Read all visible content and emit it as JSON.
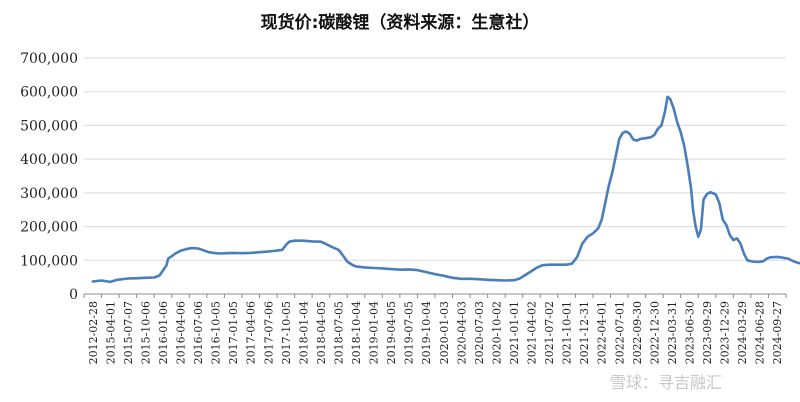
{
  "chart_data": {
    "type": "line",
    "title": "现货价:碳酸锂（资料来源：生意社）",
    "xlabel": "",
    "ylabel": "",
    "ylim": [
      0,
      700000
    ],
    "yticks": [
      0,
      100000,
      200000,
      300000,
      400000,
      500000,
      600000,
      700000
    ],
    "ytick_labels": [
      "0",
      "100,000",
      "200,000",
      "300,000",
      "400,000",
      "500,000",
      "600,000",
      "700,000"
    ],
    "x_tick_labels": [
      "2012-02-28",
      "2015-04-01",
      "2015-07-07",
      "2015-10-06",
      "2016-01-06",
      "2016-04-06",
      "2016-07-06",
      "2016-10-05",
      "2017-01-05",
      "2017-04-06",
      "2017-07-06",
      "2017-10-05",
      "2018-01-04",
      "2018-04-05",
      "2018-07-05",
      "2018-10-04",
      "2019-01-04",
      "2019-04-05",
      "2019-07-05",
      "2019-10-04",
      "2020-01-03",
      "2020-04-03",
      "2020-07-03",
      "2020-10-02",
      "2021-01-01",
      "2021-04-02",
      "2021-07-02",
      "2021-10-01",
      "2021-12-31",
      "2022-04-01",
      "2022-07-01",
      "2022-09-30",
      "2022-12-30",
      "2023-03-31",
      "2023-06-30",
      "2023-09-29",
      "2023-12-29",
      "2024-03-29",
      "2024-06-28",
      "2024-09-27"
    ],
    "grid": "horizontal",
    "legend": "none",
    "line_color": "#4a7ebb",
    "series": [
      {
        "points": [
          [
            0,
            37000
          ],
          [
            0.5,
            40000
          ],
          [
            1,
            36000
          ],
          [
            1.4,
            42000
          ],
          [
            2,
            46000
          ],
          [
            2.6,
            47000
          ],
          [
            3,
            48000
          ],
          [
            3.5,
            49000
          ],
          [
            3.8,
            55000
          ],
          [
            4,
            70000
          ],
          [
            4.2,
            85000
          ],
          [
            4.3,
            105000
          ],
          [
            4.5,
            112000
          ],
          [
            4.7,
            120000
          ],
          [
            5,
            128000
          ],
          [
            5.3,
            133000
          ],
          [
            5.6,
            136000
          ],
          [
            6,
            135000
          ],
          [
            6.3,
            130000
          ],
          [
            6.6,
            124000
          ],
          [
            7,
            121000
          ],
          [
            7.3,
            120000
          ],
          [
            7.6,
            121000
          ],
          [
            8,
            122000
          ],
          [
            8.5,
            121000
          ],
          [
            9,
            122000
          ],
          [
            9.5,
            124000
          ],
          [
            10,
            126000
          ],
          [
            10.4,
            128000
          ],
          [
            10.8,
            131000
          ],
          [
            11,
            145000
          ],
          [
            11.2,
            155000
          ],
          [
            11.5,
            158000
          ],
          [
            12,
            158000
          ],
          [
            12.5,
            156000
          ],
          [
            13,
            155000
          ],
          [
            13.3,
            148000
          ],
          [
            13.6,
            140000
          ],
          [
            14,
            131000
          ],
          [
            14.2,
            118000
          ],
          [
            14.5,
            96000
          ],
          [
            14.8,
            86000
          ],
          [
            15,
            82000
          ],
          [
            15.5,
            79000
          ],
          [
            16,
            77000
          ],
          [
            16.5,
            76000
          ],
          [
            17,
            74000
          ],
          [
            17.5,
            72000
          ],
          [
            18,
            73000
          ],
          [
            18.5,
            71000
          ],
          [
            19,
            65000
          ],
          [
            19.5,
            59000
          ],
          [
            20,
            54000
          ],
          [
            20.5,
            48000
          ],
          [
            21,
            45000
          ],
          [
            21.5,
            45000
          ],
          [
            22,
            44000
          ],
          [
            22.5,
            42000
          ],
          [
            23,
            41000
          ],
          [
            23.5,
            40000
          ],
          [
            24,
            41000
          ],
          [
            24.3,
            45000
          ],
          [
            24.6,
            55000
          ],
          [
            25,
            68000
          ],
          [
            25.3,
            78000
          ],
          [
            25.6,
            85000
          ],
          [
            26,
            87000
          ],
          [
            26.5,
            87000
          ],
          [
            27,
            87000
          ],
          [
            27.3,
            90000
          ],
          [
            27.6,
            110000
          ],
          [
            27.9,
            150000
          ],
          [
            28.2,
            170000
          ],
          [
            28.5,
            180000
          ],
          [
            28.8,
            195000
          ],
          [
            29,
            220000
          ],
          [
            29.2,
            270000
          ],
          [
            29.4,
            320000
          ],
          [
            29.6,
            360000
          ],
          [
            29.8,
            410000
          ],
          [
            30,
            460000
          ],
          [
            30.2,
            478000
          ],
          [
            30.4,
            482000
          ],
          [
            30.6,
            475000
          ],
          [
            30.8,
            458000
          ],
          [
            31,
            455000
          ],
          [
            31.2,
            460000
          ],
          [
            31.5,
            462000
          ],
          [
            31.8,
            465000
          ],
          [
            32,
            472000
          ],
          [
            32.2,
            490000
          ],
          [
            32.4,
            500000
          ],
          [
            32.6,
            540000
          ],
          [
            32.75,
            585000
          ],
          [
            32.9,
            578000
          ],
          [
            33.1,
            550000
          ],
          [
            33.3,
            510000
          ],
          [
            33.5,
            480000
          ],
          [
            33.7,
            440000
          ],
          [
            33.9,
            380000
          ],
          [
            34.1,
            310000
          ],
          [
            34.2,
            250000
          ],
          [
            34.35,
            200000
          ],
          [
            34.5,
            170000
          ],
          [
            34.65,
            190000
          ],
          [
            34.8,
            280000
          ],
          [
            35,
            297000
          ],
          [
            35.2,
            302000
          ],
          [
            35.5,
            295000
          ],
          [
            35.7,
            270000
          ],
          [
            35.9,
            220000
          ],
          [
            36.1,
            205000
          ],
          [
            36.3,
            175000
          ],
          [
            36.5,
            160000
          ],
          [
            36.7,
            165000
          ],
          [
            36.9,
            150000
          ],
          [
            37.1,
            120000
          ],
          [
            37.3,
            100000
          ],
          [
            37.6,
            96000
          ],
          [
            37.9,
            95000
          ],
          [
            38.2,
            97000
          ],
          [
            38.4,
            105000
          ],
          [
            38.6,
            109000
          ],
          [
            39,
            110000
          ],
          [
            39.3,
            108000
          ],
          [
            39.6,
            105000
          ],
          [
            39.9,
            98000
          ],
          [
            40.2,
            92000
          ],
          [
            40.5,
            90000
          ],
          [
            40.8,
            86000
          ],
          [
            41,
            80000
          ],
          [
            41.3,
            79000
          ],
          [
            41.6,
            80000
          ]
        ]
      }
    ]
  },
  "watermark": "雪球：寻吉融汇"
}
